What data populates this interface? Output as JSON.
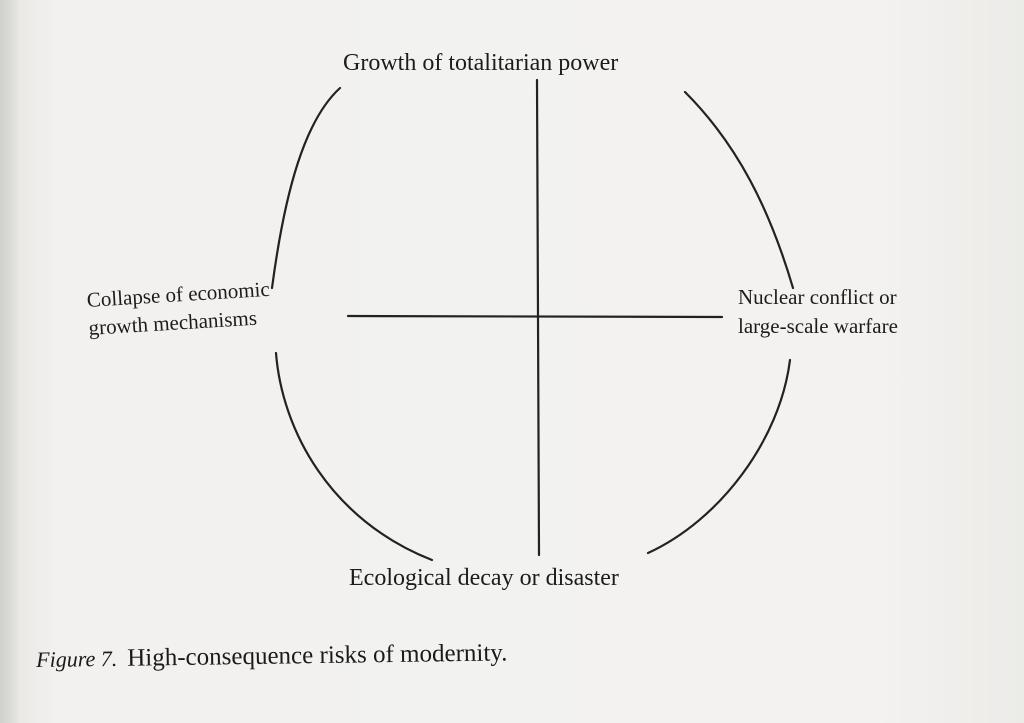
{
  "diagram": {
    "top_label": "Growth of totalitarian power",
    "bottom_label": "Ecological decay or disaster",
    "left_label_line1": "Collapse of economic",
    "left_label_line2": "growth mechanisms",
    "right_label_line1": "Nuclear conflict or",
    "right_label_line2": "large-scale warfare"
  },
  "caption": {
    "prefix": "Figure 7.",
    "text": "High-consequence risks of modernity."
  }
}
